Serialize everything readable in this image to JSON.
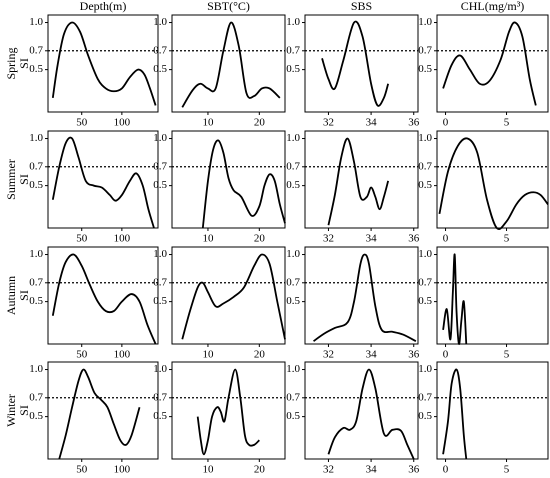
{
  "chart_data": [
    {
      "type": "line",
      "title": "Depth(m)",
      "row_label": "Spring",
      "ylabel": "SI",
      "color": "#000000",
      "x": [
        14,
        20,
        28,
        38,
        48,
        58,
        70,
        80,
        90,
        100,
        110,
        120,
        128,
        135,
        142
      ],
      "values": [
        0.2,
        0.55,
        0.88,
        1.0,
        0.9,
        0.65,
        0.4,
        0.3,
        0.27,
        0.3,
        0.42,
        0.5,
        0.45,
        0.3,
        0.12
      ],
      "xlim": [
        8,
        145
      ],
      "ylim": [
        0.05,
        1.08
      ],
      "xticks": [
        50,
        100
      ],
      "yticks": [
        0.5,
        0.7,
        {
          "value": 1.0,
          "label": "1.0"
        }
      ],
      "hline": 0.7
    },
    {
      "type": "line",
      "title": "SBT(°C)",
      "color": "#000000",
      "x": [
        5,
        7,
        8.5,
        10,
        11.5,
        13,
        14.5,
        16,
        17.5,
        19,
        20.5,
        22,
        24
      ],
      "values": [
        0.1,
        0.28,
        0.35,
        0.3,
        0.3,
        0.7,
        1.0,
        0.75,
        0.25,
        0.22,
        0.3,
        0.3,
        0.2
      ],
      "xlim": [
        3,
        25
      ],
      "ylim": [
        0.05,
        1.08
      ],
      "xticks": [
        10,
        20
      ],
      "yticks": [
        0.5,
        0.7,
        {
          "value": 1.0,
          "label": "1.0"
        }
      ],
      "hline": 0.7
    },
    {
      "type": "line",
      "title": "SBS",
      "color": "#000000",
      "x": [
        31.7,
        32,
        32.3,
        32.7,
        33.2,
        33.6,
        34,
        34.3,
        34.6,
        34.8
      ],
      "values": [
        0.62,
        0.4,
        0.3,
        0.6,
        1.0,
        0.85,
        0.35,
        0.12,
        0.2,
        0.35
      ],
      "xlim": [
        30.9,
        36.2
      ],
      "ylim": [
        0.05,
        1.08
      ],
      "xticks": [
        32,
        34,
        36
      ],
      "yticks": [
        0.5,
        0.7,
        {
          "value": 1.0,
          "label": "1.0"
        }
      ],
      "hline": 0.7
    },
    {
      "type": "line",
      "title": "CHL(mg/m³)",
      "color": "#000000",
      "x": [
        -0.2,
        0.5,
        1.2,
        2,
        2.8,
        3.6,
        4.5,
        5.2,
        5.7,
        6.3,
        6.9,
        7.4
      ],
      "values": [
        0.3,
        0.55,
        0.65,
        0.5,
        0.35,
        0.38,
        0.6,
        0.9,
        1.0,
        0.85,
        0.4,
        0.12
      ],
      "xlim": [
        -0.7,
        8.4
      ],
      "ylim": [
        0.05,
        1.08
      ],
      "xticks": [
        0,
        5
      ],
      "yticks": [
        0.5,
        0.7,
        {
          "value": 1.0,
          "label": "1.0"
        }
      ],
      "hline": 0.7
    },
    {
      "type": "line",
      "row_label": "Summer",
      "ylabel": "SI",
      "color": "#000000",
      "x": [
        14,
        22,
        30,
        38,
        46,
        55,
        65,
        75,
        85,
        92,
        100,
        110,
        118,
        126,
        133,
        140
      ],
      "values": [
        0.35,
        0.7,
        0.95,
        1.0,
        0.8,
        0.55,
        0.5,
        0.48,
        0.4,
        0.34,
        0.4,
        0.55,
        0.63,
        0.5,
        0.25,
        0.05
      ],
      "xlim": [
        8,
        145
      ],
      "ylim": [
        0.05,
        1.08
      ],
      "xticks": [
        50,
        100
      ],
      "yticks": [
        0.5,
        0.7,
        {
          "value": 1.0,
          "label": "1.0"
        }
      ],
      "hline": 0.7
    },
    {
      "type": "line",
      "color": "#000000",
      "x": [
        9,
        10,
        11,
        12,
        13,
        14,
        15,
        16.5,
        18.5,
        20,
        21,
        22,
        23,
        24,
        25
      ],
      "values": [
        0.05,
        0.55,
        0.88,
        0.98,
        0.85,
        0.58,
        0.45,
        0.38,
        0.18,
        0.28,
        0.5,
        0.62,
        0.55,
        0.3,
        0.1
      ],
      "xlim": [
        3,
        25
      ],
      "ylim": [
        0.05,
        1.08
      ],
      "xticks": [
        10,
        20
      ],
      "yticks": [
        0.5,
        0.7,
        {
          "value": 1.0,
          "label": "1.0"
        }
      ],
      "hline": 0.7
    },
    {
      "type": "line",
      "color": "#000000",
      "x": [
        32,
        32.3,
        32.6,
        32.9,
        33.2,
        33.5,
        33.8,
        34,
        34.2,
        34.4,
        34.6,
        34.8
      ],
      "values": [
        0.08,
        0.4,
        0.8,
        1.0,
        0.75,
        0.38,
        0.38,
        0.48,
        0.38,
        0.25,
        0.38,
        0.55
      ],
      "xlim": [
        30.9,
        36.2
      ],
      "ylim": [
        0.05,
        1.08
      ],
      "xticks": [
        32,
        34,
        36
      ],
      "yticks": [
        0.5,
        0.7,
        {
          "value": 1.0,
          "label": "1.0"
        }
      ],
      "hline": 0.7
    },
    {
      "type": "line",
      "color": "#000000",
      "x": [
        -0.5,
        0.2,
        1,
        1.8,
        2.6,
        3.4,
        4.2,
        5,
        5.8,
        6.5,
        7.2,
        7.8,
        8.4
      ],
      "values": [
        0.2,
        0.65,
        0.92,
        1.0,
        0.85,
        0.35,
        0.05,
        0.12,
        0.3,
        0.4,
        0.43,
        0.4,
        0.3
      ],
      "xlim": [
        -0.7,
        8.4
      ],
      "ylim": [
        0.05,
        1.08
      ],
      "xticks": [
        0,
        5
      ],
      "yticks": [
        0.5,
        0.7,
        {
          "value": 1.0,
          "label": "1.0"
        }
      ],
      "hline": 0.7
    },
    {
      "type": "line",
      "row_label": "Autumn",
      "ylabel": "SI",
      "color": "#000000",
      "x": [
        14,
        22,
        30,
        40,
        50,
        60,
        70,
        80,
        90,
        100,
        112,
        122,
        132,
        142
      ],
      "values": [
        0.35,
        0.7,
        0.92,
        1.0,
        0.88,
        0.68,
        0.5,
        0.4,
        0.4,
        0.5,
        0.58,
        0.5,
        0.25,
        0.05
      ],
      "xlim": [
        8,
        145
      ],
      "ylim": [
        0.05,
        1.08
      ],
      "xticks": [
        50,
        100
      ],
      "yticks": [
        0.5,
        0.7,
        {
          "value": 1.0,
          "label": "1.0"
        }
      ],
      "hline": 0.7
    },
    {
      "type": "line",
      "color": "#000000",
      "x": [
        5,
        6.5,
        8,
        9,
        10,
        11.5,
        13,
        15,
        17,
        19,
        20.5,
        22,
        23.5,
        25
      ],
      "values": [
        0.1,
        0.4,
        0.65,
        0.7,
        0.6,
        0.45,
        0.48,
        0.55,
        0.65,
        0.88,
        1.0,
        0.9,
        0.5,
        0.1
      ],
      "xlim": [
        3,
        25
      ],
      "ylim": [
        0.05,
        1.08
      ],
      "xticks": [
        10,
        20
      ],
      "yticks": [
        0.5,
        0.7,
        {
          "value": 1.0,
          "label": "1.0"
        }
      ],
      "hline": 0.7
    },
    {
      "type": "line",
      "color": "#000000",
      "x": [
        31.3,
        31.8,
        32.3,
        32.9,
        33.2,
        33.5,
        33.7,
        33.9,
        34.2,
        34.5,
        35,
        35.5,
        36.1
      ],
      "values": [
        0.08,
        0.16,
        0.22,
        0.28,
        0.5,
        0.9,
        1.0,
        0.9,
        0.45,
        0.2,
        0.18,
        0.15,
        0.08
      ],
      "xlim": [
        30.9,
        36.2
      ],
      "ylim": [
        0.05,
        1.08
      ],
      "xticks": [
        32,
        34,
        36
      ],
      "yticks": [
        0.5,
        0.7,
        {
          "value": 1.0,
          "label": "1.0"
        }
      ],
      "hline": 0.7
    },
    {
      "type": "line",
      "color": "#000000",
      "x": [
        -0.2,
        0.1,
        0.4,
        0.6,
        0.75,
        0.9,
        1.1,
        1.3,
        1.5,
        1.7
      ],
      "values": [
        0.2,
        0.42,
        0.1,
        0.6,
        1.0,
        0.4,
        0.05,
        0.3,
        0.5,
        0.05
      ],
      "xlim": [
        -0.7,
        8.4
      ],
      "ylim": [
        0.05,
        1.08
      ],
      "xticks": [
        0,
        5
      ],
      "yticks": [
        0.5,
        0.7,
        {
          "value": 1.0,
          "label": "1.0"
        }
      ],
      "hline": 0.7
    },
    {
      "type": "line",
      "row_label": "Winter",
      "ylabel": "SI",
      "color": "#000000",
      "x": [
        22,
        30,
        38,
        46,
        52,
        58,
        66,
        74,
        82,
        90,
        98,
        105,
        112,
        122
      ],
      "values": [
        0.05,
        0.3,
        0.6,
        0.88,
        1.0,
        0.92,
        0.75,
        0.68,
        0.6,
        0.42,
        0.25,
        0.2,
        0.3,
        0.6
      ],
      "xlim": [
        8,
        145
      ],
      "ylim": [
        0.05,
        1.08
      ],
      "xticks": [
        50,
        100
      ],
      "yticks": [
        0.5,
        0.7,
        {
          "value": 1.0,
          "label": "1.0"
        }
      ],
      "hline": 0.7
    },
    {
      "type": "line",
      "color": "#000000",
      "x": [
        8,
        8.6,
        9.2,
        10,
        10.8,
        11.8,
        12.5,
        13.2,
        14,
        15.3,
        16.3,
        17.2,
        18,
        19,
        20
      ],
      "values": [
        0.5,
        0.25,
        0.1,
        0.25,
        0.5,
        0.6,
        0.55,
        0.45,
        0.7,
        1.0,
        0.7,
        0.3,
        0.2,
        0.2,
        0.25
      ],
      "xlim": [
        3,
        25
      ],
      "ylim": [
        0.05,
        1.08
      ],
      "xticks": [
        10,
        20
      ],
      "yticks": [
        0.5,
        0.7,
        {
          "value": 1.0,
          "label": "1.0"
        }
      ],
      "hline": 0.7
    },
    {
      "type": "line",
      "color": "#000000",
      "x": [
        32,
        32.3,
        32.7,
        33,
        33.3,
        33.6,
        33.9,
        34.2,
        34.6,
        35,
        35.4,
        35.7,
        36
      ],
      "values": [
        0.1,
        0.28,
        0.38,
        0.36,
        0.45,
        0.8,
        1.0,
        0.8,
        0.32,
        0.36,
        0.35,
        0.2,
        0.05
      ],
      "xlim": [
        30.9,
        36.2
      ],
      "ylim": [
        0.05,
        1.08
      ],
      "xticks": [
        32,
        34,
        36
      ],
      "yticks": [
        0.5,
        0.7,
        {
          "value": 1.0,
          "label": "1.0"
        }
      ],
      "hline": 0.7
    },
    {
      "type": "line",
      "color": "#000000",
      "x": [
        -0.2,
        0.2,
        0.5,
        0.9,
        1.2,
        1.5,
        1.7
      ],
      "values": [
        0.1,
        0.45,
        0.85,
        1.0,
        0.8,
        0.3,
        0.05
      ],
      "xlim": [
        -0.7,
        8.4
      ],
      "ylim": [
        0.05,
        1.08
      ],
      "xticks": [
        0,
        5
      ],
      "yticks": [
        0.5,
        0.7,
        {
          "value": 1.0,
          "label": "1.0"
        }
      ],
      "hline": 0.7
    }
  ]
}
